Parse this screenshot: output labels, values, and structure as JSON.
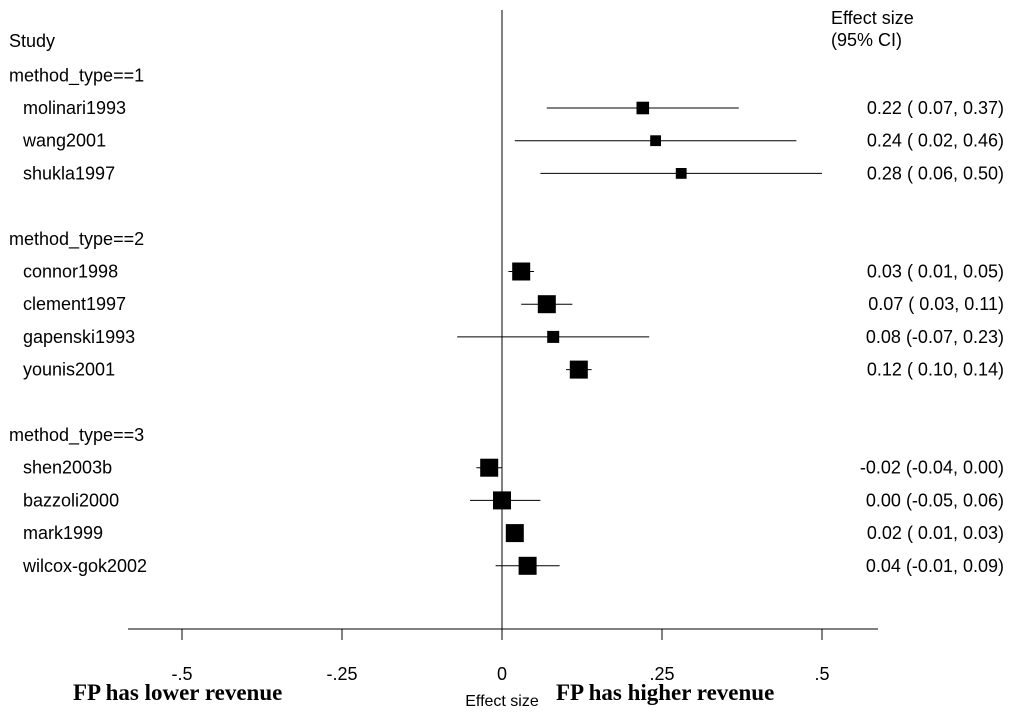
{
  "chart_data": {
    "type": "forest",
    "column_headers": {
      "study": "Study",
      "effect_line1": "Effect size",
      "effect_line2": "(95% CI)"
    },
    "groups": [
      {
        "label": "method_type==1",
        "studies": [
          {
            "name": "molinari1993",
            "es": 0.22,
            "lo": 0.07,
            "hi": 0.37,
            "text": "0.22 ( 0.07, 0.37)",
            "weight": 0.55
          },
          {
            "name": "wang2001",
            "es": 0.24,
            "lo": 0.02,
            "hi": 0.46,
            "text": "0.24 ( 0.02, 0.46)",
            "weight": 0.4
          },
          {
            "name": "shukla1997",
            "es": 0.28,
            "lo": 0.06,
            "hi": 0.5,
            "text": "0.28 ( 0.06, 0.50)",
            "weight": 0.4
          }
        ]
      },
      {
        "label": "method_type==2",
        "studies": [
          {
            "name": "connor1998",
            "es": 0.03,
            "lo": 0.01,
            "hi": 0.05,
            "text": "0.03 ( 0.01, 0.05)",
            "weight": 1.0
          },
          {
            "name": "clement1997",
            "es": 0.07,
            "lo": 0.03,
            "hi": 0.11,
            "text": "0.07 ( 0.03, 0.11)",
            "weight": 1.0
          },
          {
            "name": "gapenski1993",
            "es": 0.08,
            "lo": -0.07,
            "hi": 0.23,
            "text": "0.08 (-0.07, 0.23)",
            "weight": 0.5
          },
          {
            "name": "younis2001",
            "es": 0.12,
            "lo": 0.1,
            "hi": 0.14,
            "text": "0.12 ( 0.10, 0.14)",
            "weight": 1.0
          }
        ]
      },
      {
        "label": "method_type==3",
        "studies": [
          {
            "name": "shen2003b",
            "es": -0.02,
            "lo": -0.04,
            "hi": 0.0,
            "text": "-0.02 (-0.04, 0.00)",
            "weight": 1.0
          },
          {
            "name": "bazzoli2000",
            "es": 0.0,
            "lo": -0.05,
            "hi": 0.06,
            "text": "0.00 (-0.05, 0.06)",
            "weight": 1.0
          },
          {
            "name": "mark1999",
            "es": 0.02,
            "lo": 0.01,
            "hi": 0.03,
            "text": "0.02 ( 0.01, 0.03)",
            "weight": 1.0
          },
          {
            "name": "wilcox-gok2002",
            "es": 0.04,
            "lo": -0.01,
            "hi": 0.09,
            "text": "0.04 (-0.01, 0.09)",
            "weight": 1.0
          }
        ]
      }
    ],
    "x_axis": {
      "ticks": [
        -0.5,
        -0.25,
        0,
        0.25,
        0.5
      ],
      "tick_labels": [
        "-.5",
        "-.25",
        "0",
        ".25",
        ".5"
      ],
      "xlim": [
        -0.58,
        0.59
      ],
      "label": "Effect size"
    },
    "null_line": 0,
    "side_labels": {
      "left": "FP has lower revenue",
      "right": "FP has higher revenue"
    }
  }
}
